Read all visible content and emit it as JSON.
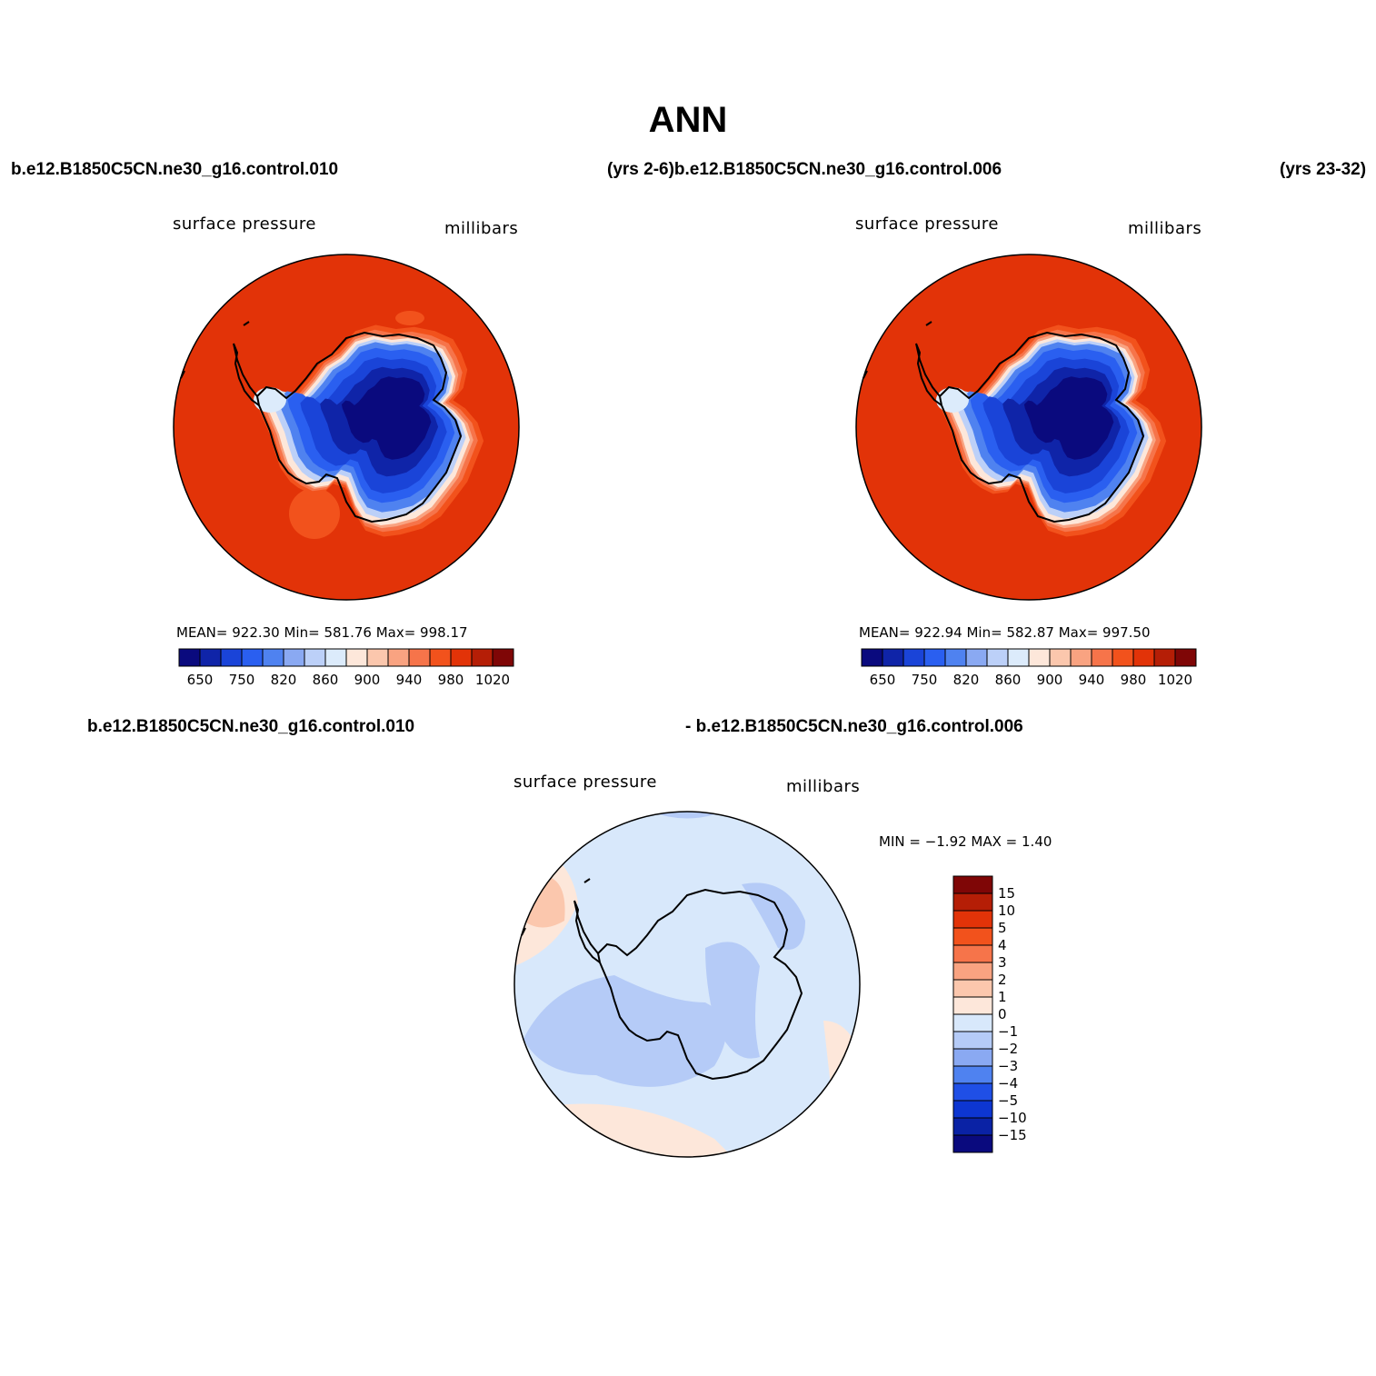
{
  "title": "ANN",
  "headers": {
    "top_left_case": "b.e12.B1850C5CN.ne30_g16.control.010",
    "top_mid": "(yrs 2-6)b.e12.B1850C5CN.ne30_g16.control.006",
    "top_right_yrs": "(yrs 23-32)",
    "bottom_left_case": "b.e12.B1850C5CN.ne30_g16.control.010",
    "bottom_right_case": "- b.e12.B1850C5CN.ne30_g16.control.006"
  },
  "panels": [
    {
      "variable": "surface pressure",
      "units": "millibars",
      "stats": "MEAN=  922.30    Min=  581.76    Max=  998.17"
    },
    {
      "variable": "surface pressure",
      "units": "millibars",
      "stats": "MEAN=  922.94    Min=  582.87    Max=  997.50"
    },
    {
      "variable": "surface pressure",
      "units": "millibars",
      "stats": "MIN =   −1.92  MAX =     1.40"
    }
  ],
  "colorbar_main": {
    "colors": [
      "#0a0a7e",
      "#0f24a8",
      "#1a44d8",
      "#2a5ff0",
      "#4f82f0",
      "#8aa9f2",
      "#bcd0f8",
      "#dcebfb",
      "#fde7da",
      "#fbc7ad",
      "#f9a381",
      "#f6744a",
      "#f2521c",
      "#e23308",
      "#b51e06",
      "#7f0606"
    ],
    "labels": [
      "650",
      "750",
      "820",
      "860",
      "900",
      "940",
      "980",
      "1020"
    ]
  },
  "colorbar_diff": {
    "colors": [
      "#7f0606",
      "#b51e06",
      "#e23308",
      "#f2521c",
      "#f6744a",
      "#f9a381",
      "#fbc7ad",
      "#fde7da",
      "#d8e8fb",
      "#b5cbf7",
      "#8aa9f2",
      "#4f82f0",
      "#1f4fe6",
      "#0d36d1",
      "#0a22a5",
      "#0a0a7e"
    ],
    "labels": [
      "15",
      "10",
      "5",
      "4",
      "3",
      "2",
      "1",
      "0",
      "−1",
      "−2",
      "−3",
      "−4",
      "−5",
      "−10",
      "−15"
    ]
  },
  "map_colors": {
    "ocean_main": "#e23308",
    "ocean_edge": "#f6744a",
    "coast_white": "#fde7da",
    "diff_base": "#d8e8fb",
    "diff_neg": "#b5cbf7",
    "diff_pos": "#fde7da",
    "diff_pos2": "#fbc7ad"
  }
}
